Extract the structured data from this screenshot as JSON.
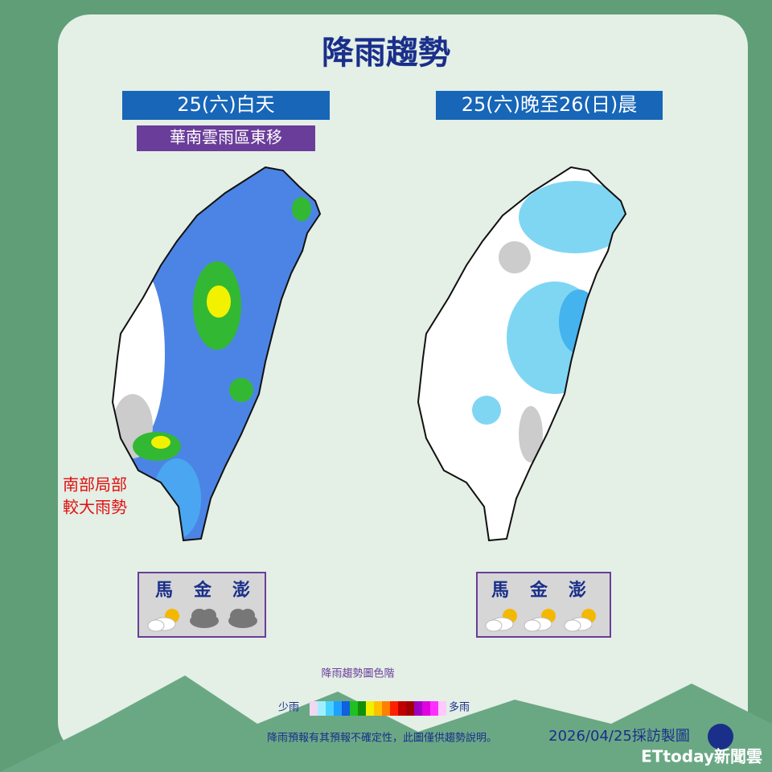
{
  "title": "降雨趨勢",
  "panels": [
    {
      "heading": "25(六)白天",
      "subheading": "華南雲雨區東移",
      "note": [
        "南部局部",
        "較大雨勢"
      ],
      "islands": [
        "馬",
        "金",
        "澎"
      ]
    },
    {
      "heading": "25(六)晚至26(日)晨",
      "islands": [
        "馬",
        "金",
        "澎"
      ]
    }
  ],
  "legend": {
    "title": "降雨趨勢圖色階",
    "low": "少雨",
    "high": "多雨"
  },
  "footer": {
    "disclaimer": "降雨預報有其預報不確定性，此圖僅供趨勢說明。",
    "credit": "2026/04/25採訪製圖",
    "brand": "ETtoday新聞雲"
  }
}
